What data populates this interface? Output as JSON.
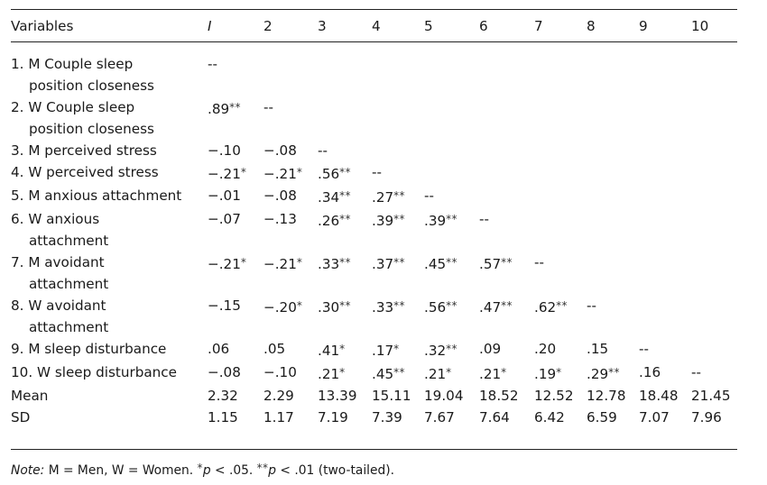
{
  "table": {
    "header": {
      "variables_label": "Variables",
      "columns": [
        "I",
        "2",
        "3",
        "4",
        "5",
        "6",
        "7",
        "8",
        "9",
        "10"
      ]
    },
    "rows": [
      {
        "label_lines": [
          "1. M Couple sleep",
          "position closeness"
        ],
        "cells": [
          {
            "v": "--",
            "s": ""
          },
          {
            "v": "",
            "s": ""
          },
          {
            "v": "",
            "s": ""
          },
          {
            "v": "",
            "s": ""
          },
          {
            "v": "",
            "s": ""
          },
          {
            "v": "",
            "s": ""
          },
          {
            "v": "",
            "s": ""
          },
          {
            "v": "",
            "s": ""
          },
          {
            "v": "",
            "s": ""
          },
          {
            "v": "",
            "s": ""
          }
        ]
      },
      {
        "label_lines": [
          "2. W Couple sleep",
          "position closeness"
        ],
        "cells": [
          {
            "v": ".89",
            "s": "**"
          },
          {
            "v": "--",
            "s": ""
          },
          {
            "v": "",
            "s": ""
          },
          {
            "v": "",
            "s": ""
          },
          {
            "v": "",
            "s": ""
          },
          {
            "v": "",
            "s": ""
          },
          {
            "v": "",
            "s": ""
          },
          {
            "v": "",
            "s": ""
          },
          {
            "v": "",
            "s": ""
          },
          {
            "v": "",
            "s": ""
          }
        ]
      },
      {
        "label_lines": [
          "3. M perceived stress"
        ],
        "cells": [
          {
            "v": "−.10",
            "s": ""
          },
          {
            "v": "−.08",
            "s": ""
          },
          {
            "v": "--",
            "s": ""
          },
          {
            "v": "",
            "s": ""
          },
          {
            "v": "",
            "s": ""
          },
          {
            "v": "",
            "s": ""
          },
          {
            "v": "",
            "s": ""
          },
          {
            "v": "",
            "s": ""
          },
          {
            "v": "",
            "s": ""
          },
          {
            "v": "",
            "s": ""
          }
        ]
      },
      {
        "label_lines": [
          "4. W perceived stress"
        ],
        "cells": [
          {
            "v": "−.21",
            "s": "*"
          },
          {
            "v": "−.21",
            "s": "*"
          },
          {
            "v": ".56",
            "s": "**"
          },
          {
            "v": "--",
            "s": ""
          },
          {
            "v": "",
            "s": ""
          },
          {
            "v": "",
            "s": ""
          },
          {
            "v": "",
            "s": ""
          },
          {
            "v": "",
            "s": ""
          },
          {
            "v": "",
            "s": ""
          },
          {
            "v": "",
            "s": ""
          }
        ]
      },
      {
        "label_lines": [
          "5. M anxious attachment"
        ],
        "cells": [
          {
            "v": "−.01",
            "s": ""
          },
          {
            "v": "−.08",
            "s": ""
          },
          {
            "v": ".34",
            "s": "**"
          },
          {
            "v": ".27",
            "s": "**"
          },
          {
            "v": "--",
            "s": ""
          },
          {
            "v": "",
            "s": ""
          },
          {
            "v": "",
            "s": ""
          },
          {
            "v": "",
            "s": ""
          },
          {
            "v": "",
            "s": ""
          },
          {
            "v": "",
            "s": ""
          }
        ]
      },
      {
        "label_lines": [
          "6. W anxious",
          "attachment"
        ],
        "cells": [
          {
            "v": "−.07",
            "s": ""
          },
          {
            "v": "−.13",
            "s": ""
          },
          {
            "v": ".26",
            "s": "**"
          },
          {
            "v": ".39",
            "s": "**"
          },
          {
            "v": ".39",
            "s": "**"
          },
          {
            "v": "--",
            "s": ""
          },
          {
            "v": "",
            "s": ""
          },
          {
            "v": "",
            "s": ""
          },
          {
            "v": "",
            "s": ""
          },
          {
            "v": "",
            "s": ""
          }
        ]
      },
      {
        "label_lines": [
          "7. M avoidant",
          "attachment"
        ],
        "cells": [
          {
            "v": "−.21",
            "s": "*"
          },
          {
            "v": "−.21",
            "s": "*"
          },
          {
            "v": ".33",
            "s": "**"
          },
          {
            "v": ".37",
            "s": "**"
          },
          {
            "v": ".45",
            "s": "**"
          },
          {
            "v": ".57",
            "s": "**"
          },
          {
            "v": "--",
            "s": ""
          },
          {
            "v": "",
            "s": ""
          },
          {
            "v": "",
            "s": ""
          },
          {
            "v": "",
            "s": ""
          }
        ]
      },
      {
        "label_lines": [
          "8. W avoidant",
          "attachment"
        ],
        "cells": [
          {
            "v": "−.15",
            "s": ""
          },
          {
            "v": "−.20",
            "s": "*"
          },
          {
            "v": ".30",
            "s": "**"
          },
          {
            "v": ".33",
            "s": "**"
          },
          {
            "v": ".56",
            "s": "**"
          },
          {
            "v": ".47",
            "s": "**"
          },
          {
            "v": ".62",
            "s": "**"
          },
          {
            "v": "--",
            "s": ""
          },
          {
            "v": "",
            "s": ""
          },
          {
            "v": "",
            "s": ""
          }
        ]
      },
      {
        "label_lines": [
          "9. M sleep disturbance"
        ],
        "cells": [
          {
            "v": ".06",
            "s": ""
          },
          {
            "v": ".05",
            "s": ""
          },
          {
            "v": ".41",
            "s": "*"
          },
          {
            "v": ".17",
            "s": "*"
          },
          {
            "v": ".32",
            "s": "**"
          },
          {
            "v": ".09",
            "s": ""
          },
          {
            "v": ".20",
            "s": ""
          },
          {
            "v": ".15",
            "s": ""
          },
          {
            "v": "--",
            "s": ""
          },
          {
            "v": "",
            "s": ""
          }
        ]
      },
      {
        "label_lines": [
          "10. W sleep disturbance"
        ],
        "cells": [
          {
            "v": "−.08",
            "s": ""
          },
          {
            "v": "−.10",
            "s": ""
          },
          {
            "v": ".21",
            "s": "*"
          },
          {
            "v": ".45",
            "s": "**"
          },
          {
            "v": ".21",
            "s": "*"
          },
          {
            "v": ".21",
            "s": "*"
          },
          {
            "v": ".19",
            "s": "*"
          },
          {
            "v": ".29",
            "s": "**"
          },
          {
            "v": ".16",
            "s": ""
          },
          {
            "v": "--",
            "s": ""
          }
        ]
      },
      {
        "label_lines": [
          "Mean"
        ],
        "cells": [
          {
            "v": "2.32",
            "s": ""
          },
          {
            "v": "2.29",
            "s": ""
          },
          {
            "v": "13.39",
            "s": ""
          },
          {
            "v": "15.11",
            "s": ""
          },
          {
            "v": "19.04",
            "s": ""
          },
          {
            "v": "18.52",
            "s": ""
          },
          {
            "v": "12.52",
            "s": ""
          },
          {
            "v": "12.78",
            "s": ""
          },
          {
            "v": "18.48",
            "s": ""
          },
          {
            "v": "21.45",
            "s": ""
          }
        ]
      },
      {
        "label_lines": [
          "SD"
        ],
        "cells": [
          {
            "v": "1.15",
            "s": ""
          },
          {
            "v": "1.17",
            "s": ""
          },
          {
            "v": "7.19",
            "s": ""
          },
          {
            "v": "7.39",
            "s": ""
          },
          {
            "v": "7.67",
            "s": ""
          },
          {
            "v": "7.64",
            "s": ""
          },
          {
            "v": "6.42",
            "s": ""
          },
          {
            "v": "6.59",
            "s": ""
          },
          {
            "v": "7.07",
            "s": ""
          },
          {
            "v": "7.96",
            "s": ""
          }
        ]
      }
    ]
  },
  "note": {
    "label": "Note:",
    "definitions": " M = Men, W = Women. ",
    "star1": "*",
    "p1": "p",
    "t1": " < .05. ",
    "star2": "**",
    "p2": "p",
    "t2": " < .01 (two-tailed)."
  }
}
